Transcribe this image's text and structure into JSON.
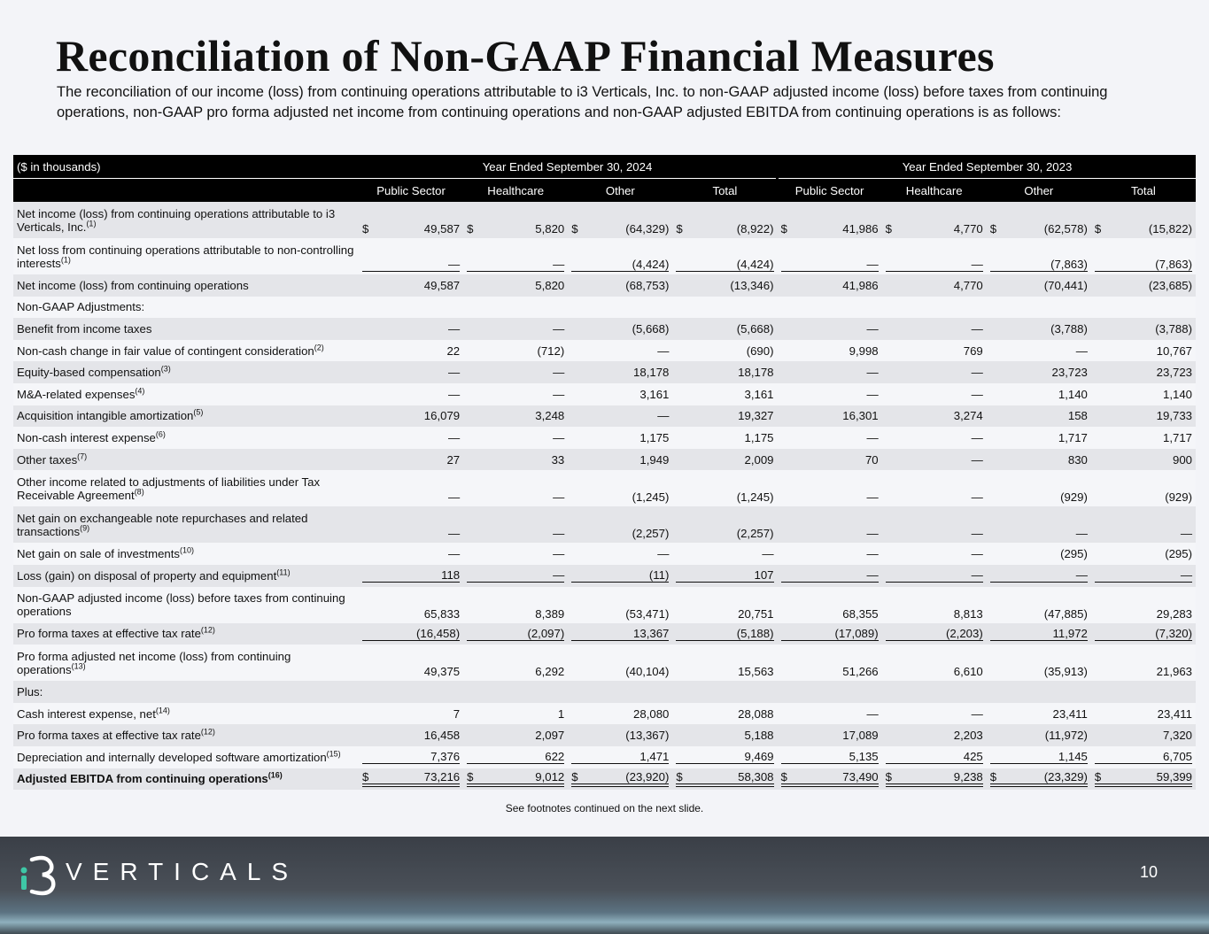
{
  "title": "Reconciliation of Non-GAAP Financial Measures",
  "subtitle": "The reconciliation of our income (loss) from continuing operations attributable to i3 Verticals, Inc. to non-GAAP adjusted income (loss) before taxes from continuing operations, non-GAAP pro forma adjusted net income from continuing operations and non-GAAP adjusted EBITDA from continuing operations is as follows:",
  "table": {
    "unit_label": "($ in thousands)",
    "periods": [
      "Year Ended September 30, 2024",
      "Year Ended September 30, 2023"
    ],
    "columns": [
      "Public Sector",
      "Healthcare",
      "Other",
      "Total",
      "Public Sector",
      "Healthcare",
      "Other",
      "Total"
    ],
    "rows": [
      {
        "label": "Net income (loss) from continuing operations attributable to i3 Verticals, Inc.",
        "note": "(1)",
        "currency": "$",
        "cells": [
          "49,587",
          "5,820",
          "(64,329)",
          "(8,922)",
          "41,986",
          "4,770",
          "(62,578)",
          "(15,822)"
        ]
      },
      {
        "label": "Net loss from continuing operations attributable to non-controlling interests",
        "note": "(1)",
        "border": "single",
        "cells": [
          "—",
          "—",
          "(4,424)",
          "(4,424)",
          "—",
          "—",
          "(7,863)",
          "(7,863)"
        ]
      },
      {
        "label": "Net income (loss) from continuing operations",
        "cells": [
          "49,587",
          "5,820",
          "(68,753)",
          "(13,346)",
          "41,986",
          "4,770",
          "(70,441)",
          "(23,685)"
        ]
      },
      {
        "label": "Non-GAAP Adjustments:"
      },
      {
        "label": "Benefit from income taxes",
        "cells": [
          "—",
          "—",
          "(5,668)",
          "(5,668)",
          "—",
          "—",
          "(3,788)",
          "(3,788)"
        ]
      },
      {
        "label": "Non-cash change in fair value of contingent consideration",
        "note": "(2)",
        "cells": [
          "22",
          "(712)",
          "—",
          "(690)",
          "9,998",
          "769",
          "—",
          "10,767"
        ]
      },
      {
        "label": "Equity-based compensation",
        "note": "(3)",
        "cells": [
          "—",
          "—",
          "18,178",
          "18,178",
          "—",
          "—",
          "23,723",
          "23,723"
        ]
      },
      {
        "label": "M&A-related expenses",
        "note": "(4)",
        "cells": [
          "—",
          "—",
          "3,161",
          "3,161",
          "—",
          "—",
          "1,140",
          "1,140"
        ]
      },
      {
        "label": "Acquisition intangible amortization",
        "note": "(5)",
        "cells": [
          "16,079",
          "3,248",
          "—",
          "19,327",
          "16,301",
          "3,274",
          "158",
          "19,733"
        ]
      },
      {
        "label": "Non-cash interest expense",
        "note": "(6)",
        "cells": [
          "—",
          "—",
          "1,175",
          "1,175",
          "—",
          "—",
          "1,717",
          "1,717"
        ]
      },
      {
        "label": "Other taxes",
        "note": "(7)",
        "cells": [
          "27",
          "33",
          "1,949",
          "2,009",
          "70",
          "—",
          "830",
          "900"
        ]
      },
      {
        "label": "Other income related to adjustments of liabilities under Tax Receivable Agreement",
        "note": "(8)",
        "cells": [
          "—",
          "—",
          "(1,245)",
          "(1,245)",
          "—",
          "—",
          "(929)",
          "(929)"
        ]
      },
      {
        "label": "Net gain on exchangeable note repurchases and related transactions",
        "note": "(9)",
        "cells": [
          "—",
          "—",
          "(2,257)",
          "(2,257)",
          "—",
          "—",
          "—",
          "—"
        ]
      },
      {
        "label": "Net gain on sale of investments",
        "note": "(10)",
        "cells": [
          "—",
          "—",
          "—",
          "—",
          "—",
          "—",
          "(295)",
          "(295)"
        ]
      },
      {
        "label": "Loss (gain) on disposal of property and equipment",
        "note": "(11)",
        "border": "single",
        "cells": [
          "118",
          "—",
          "(11)",
          "107",
          "—",
          "—",
          "—",
          "—"
        ]
      },
      {
        "label": "Non-GAAP adjusted income (loss) before taxes from continuing operations",
        "cells": [
          "65,833",
          "8,389",
          "(53,471)",
          "20,751",
          "68,355",
          "8,813",
          "(47,885)",
          "29,283"
        ]
      },
      {
        "label": "Pro forma taxes at effective tax rate",
        "note": "(12)",
        "border": "single",
        "cells": [
          "(16,458)",
          "(2,097)",
          "13,367",
          "(5,188)",
          "(17,089)",
          "(2,203)",
          "11,972",
          "(7,320)"
        ]
      },
      {
        "label": "Pro forma adjusted net income (loss) from continuing operations",
        "note": "(13)",
        "cells": [
          "49,375",
          "6,292",
          "(40,104)",
          "15,563",
          "51,266",
          "6,610",
          "(35,913)",
          "21,963"
        ]
      },
      {
        "label": "Plus:"
      },
      {
        "label": "Cash interest expense, net",
        "note": "(14)",
        "cells": [
          "7",
          "1",
          "28,080",
          "28,088",
          "—",
          "—",
          "23,411",
          "23,411"
        ]
      },
      {
        "label": "Pro forma taxes at effective tax rate",
        "note": "(12)",
        "cells": [
          "16,458",
          "2,097",
          "(13,367)",
          "5,188",
          "17,089",
          "2,203",
          "(11,972)",
          "7,320"
        ]
      },
      {
        "label": "Depreciation and internally developed software amortization",
        "note": "(15)",
        "border": "single",
        "cells": [
          "7,376",
          "622",
          "1,471",
          "9,469",
          "5,135",
          "425",
          "1,145",
          "6,705"
        ]
      },
      {
        "label": "Adjusted EBITDA from continuing operations",
        "note": "(16)",
        "currency": "$",
        "bold": true,
        "border": "double",
        "cells": [
          "73,216",
          "9,012",
          "(23,920)",
          "58,308",
          "73,490",
          "9,238",
          "(23,329)",
          "59,399"
        ]
      }
    ]
  },
  "note": "See footnotes continued on the next slide.",
  "footer": {
    "brand": "VERTICALS",
    "page": "10"
  }
}
